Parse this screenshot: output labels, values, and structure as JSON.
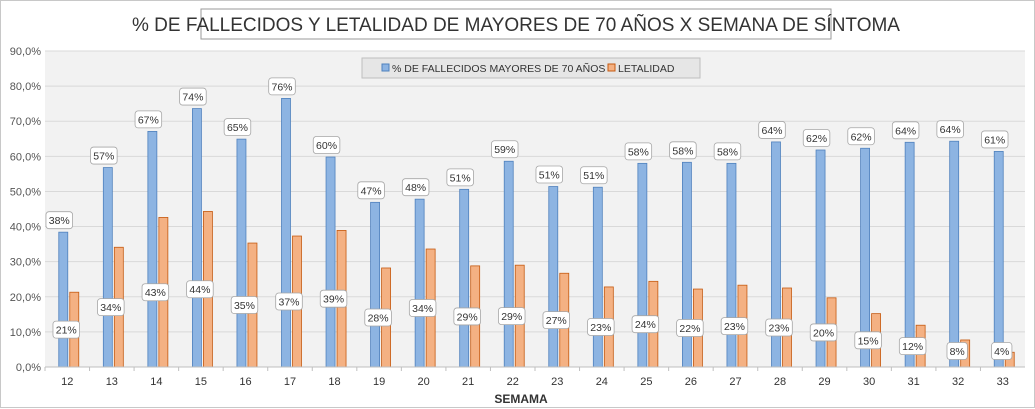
{
  "chart_data": {
    "type": "bar",
    "title": "% DE FALLECIDOS Y LETALIDAD DE MAYORES DE 70 AÑOS X SEMANA DE SÍNTOMA",
    "xlabel": "SEMAMA",
    "ylabel": "",
    "ylim": [
      0,
      90
    ],
    "y_tick_labels": [
      "0,0%",
      "10,0%",
      "20,0%",
      "30,0%",
      "40,0%",
      "50,0%",
      "60,0%",
      "70,0%",
      "80,0%",
      "90,0%"
    ],
    "categories": [
      "12",
      "13",
      "14",
      "15",
      "16",
      "17",
      "18",
      "19",
      "20",
      "21",
      "22",
      "23",
      "24",
      "25",
      "26",
      "27",
      "28",
      "29",
      "30",
      "31",
      "32",
      "33"
    ],
    "legend_position": "top-center",
    "grid": true,
    "series": [
      {
        "name": "% DE FALLECIDOS MAYORES DE 70 AÑOS",
        "color": "#8db4e2",
        "stroke": "#4f81bd",
        "values": [
          38.4,
          56.8,
          67.1,
          73.6,
          64.9,
          76.5,
          59.8,
          46.9,
          47.8,
          50.6,
          58.6,
          51.4,
          51.2,
          58.0,
          58.3,
          58.0,
          64.1,
          61.8,
          62.3,
          64.0,
          64.3,
          61.4
        ],
        "labels": [
          "38%",
          "57%",
          "67%",
          "74%",
          "65%",
          "76%",
          "60%",
          "47%",
          "48%",
          "51%",
          "59%",
          "51%",
          "51%",
          "58%",
          "58%",
          "58%",
          "64%",
          "62%",
          "62%",
          "64%",
          "64%",
          "61%"
        ]
      },
      {
        "name": "LETALIDAD",
        "color": "#f4b183",
        "stroke": "#c55a11",
        "values": [
          21.3,
          34.1,
          42.6,
          44.3,
          35.3,
          37.3,
          38.9,
          28.2,
          33.6,
          28.8,
          29.0,
          26.7,
          22.8,
          24.4,
          22.2,
          23.3,
          22.5,
          19.7,
          15.2,
          11.9,
          7.7,
          4.2
        ],
        "labels": [
          "21%",
          "34%",
          "43%",
          "44%",
          "35%",
          "37%",
          "39%",
          "28%",
          "34%",
          "29%",
          "29%",
          "27%",
          "23%",
          "24%",
          "22%",
          "23%",
          "23%",
          "20%",
          "15%",
          "12%",
          "8%",
          "4%"
        ]
      }
    ]
  }
}
